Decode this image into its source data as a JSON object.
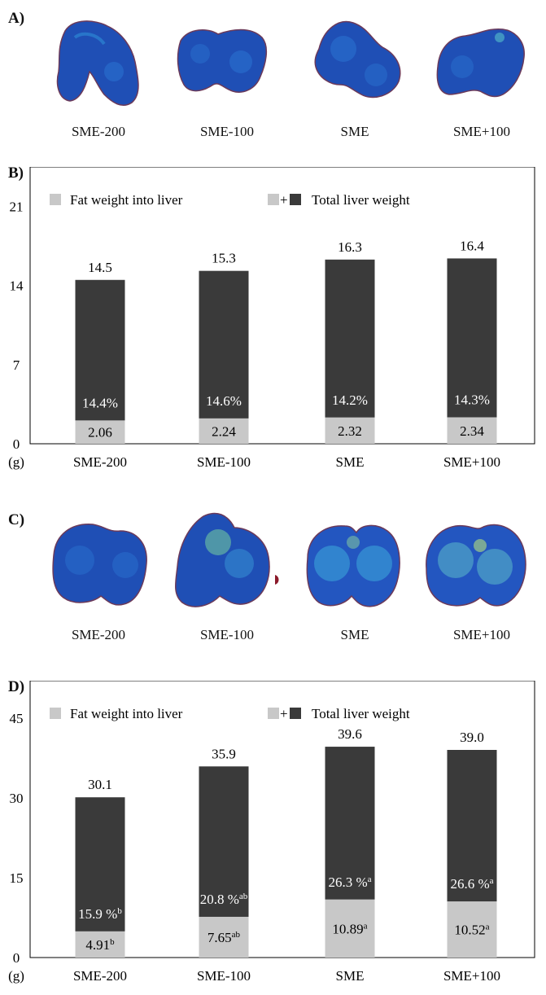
{
  "panels": {
    "a": {
      "letter": "A)",
      "labels": [
        "SME-200",
        "SME-100",
        "SME",
        "SME+100"
      ]
    },
    "c": {
      "letter": "C)",
      "labels": [
        "SME-200",
        "SME-100",
        "SME",
        "SME+100"
      ]
    }
  },
  "chart_data": [
    {
      "type": "bar",
      "stacked": true,
      "panel_letter": "B)",
      "categories": [
        "SME-200",
        "SME-100",
        "SME",
        "SME+100"
      ],
      "series": [
        {
          "name": "Fat weight into liver",
          "color": "#c8c8c8",
          "values": [
            2.06,
            2.24,
            2.32,
            2.34
          ],
          "labels": [
            {
              "text": "2.06",
              "sup": ""
            },
            {
              "text": "2.24",
              "sup": ""
            },
            {
              "text": "2.32",
              "sup": ""
            },
            {
              "text": "2.34",
              "sup": ""
            }
          ]
        },
        {
          "name": "Total liver weight",
          "color": "#3a3a3a",
          "totals": [
            14.5,
            15.3,
            16.3,
            16.4
          ],
          "total_labels": [
            "14.5",
            "15.3",
            "16.3",
            "16.4"
          ]
        }
      ],
      "percent_labels": [
        {
          "text": "14.4%",
          "sup": ""
        },
        {
          "text": "14.6%",
          "sup": ""
        },
        {
          "text": "14.2%",
          "sup": ""
        },
        {
          "text": "14.3%",
          "sup": ""
        }
      ],
      "legend": {
        "fat": "Fat weight into liver",
        "plus": "+",
        "total": "Total liver weight",
        "placement": "top"
      },
      "yticks": [
        0,
        7,
        14,
        21
      ],
      "ylim": [
        0,
        24.5
      ],
      "yunit": "(g)"
    },
    {
      "type": "bar",
      "stacked": true,
      "panel_letter": "D)",
      "categories": [
        "SME-200",
        "SME-100",
        "SME",
        "SME+100"
      ],
      "series": [
        {
          "name": "Fat weight into liver",
          "color": "#c8c8c8",
          "values": [
            4.91,
            7.65,
            10.89,
            10.52
          ],
          "labels": [
            {
              "text": "4.91",
              "sup": "b"
            },
            {
              "text": "7.65",
              "sup": "ab"
            },
            {
              "text": "10.89",
              "sup": "a"
            },
            {
              "text": "10.52",
              "sup": "a"
            }
          ]
        },
        {
          "name": "Total liver weight",
          "color": "#3a3a3a",
          "totals": [
            30.1,
            35.9,
            39.6,
            39.0
          ],
          "total_labels": [
            "30.1",
            "35.9",
            "39.6",
            "39.0"
          ]
        }
      ],
      "percent_labels": [
        {
          "text": "15.9 %",
          "sup": "b"
        },
        {
          "text": "20.8 %",
          "sup": "ab"
        },
        {
          "text": "26.3 %",
          "sup": "a"
        },
        {
          "text": "26.6 %",
          "sup": "a"
        }
      ],
      "legend": {
        "fat": "Fat weight into liver",
        "plus": "+",
        "total": "Total liver weight",
        "placement": "top"
      },
      "yticks": [
        0,
        15,
        30,
        45
      ],
      "ylim": [
        0,
        52
      ],
      "yunit": "(g)"
    }
  ]
}
